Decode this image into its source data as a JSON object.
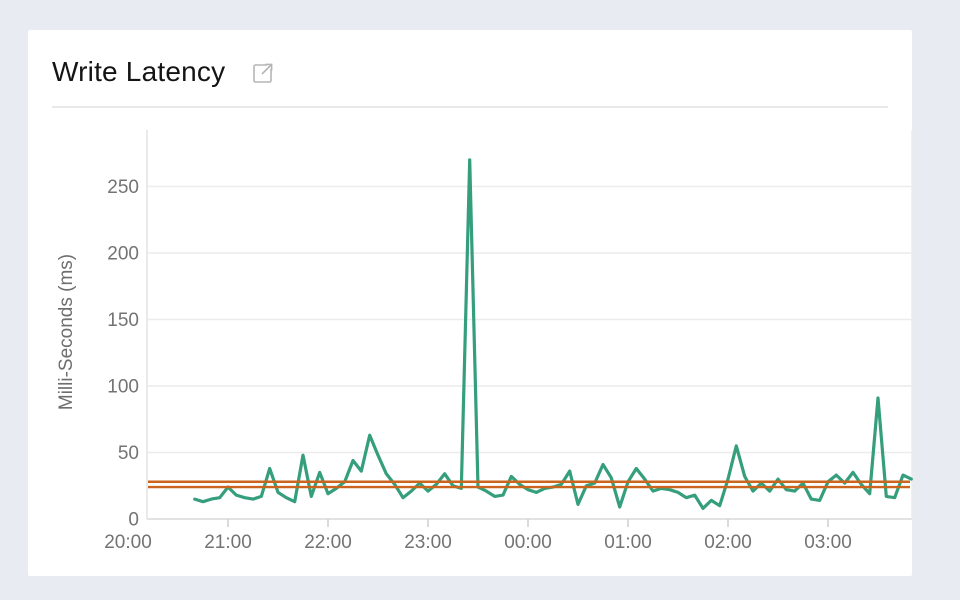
{
  "header": {
    "title": "Write Latency",
    "icon": "external-link"
  },
  "colors": {
    "page_background": "#e8ebf1",
    "card_background": "#ffffff",
    "series_green": "#349e7d",
    "reference_orange": "#cb641c",
    "gridline": "#ececec",
    "zero_line": "#d9d9d9",
    "axis_line": "#e4e4e4",
    "tick_text": "#737373",
    "axis_title_text": "#6e6e6e",
    "icon_gray": "#b5b5b5"
  },
  "chart_data": {
    "type": "line",
    "title": "Write Latency",
    "xlabel": "",
    "ylabel": "Milli-Seconds (ms)",
    "ylim": [
      0,
      285
    ],
    "grid": true,
    "legend_position": "none",
    "y_ticks": [
      0,
      50,
      100,
      150,
      200,
      250
    ],
    "x_tick_labels": [
      "20:00",
      "21:00",
      "22:00",
      "23:00",
      "00:00",
      "01:00",
      "02:00",
      "03:00"
    ],
    "x": [
      "20:40",
      "20:45",
      "20:50",
      "20:55",
      "21:00",
      "21:05",
      "21:10",
      "21:15",
      "21:20",
      "21:25",
      "21:30",
      "21:35",
      "21:40",
      "21:45",
      "21:50",
      "21:55",
      "22:00",
      "22:05",
      "22:10",
      "22:15",
      "22:20",
      "22:25",
      "22:30",
      "22:35",
      "22:40",
      "22:45",
      "22:50",
      "22:55",
      "23:00",
      "23:05",
      "23:10",
      "23:15",
      "23:20",
      "23:25",
      "23:30",
      "23:35",
      "23:40",
      "23:45",
      "23:50",
      "23:55",
      "00:00",
      "00:05",
      "00:10",
      "00:15",
      "00:20",
      "00:25",
      "00:30",
      "00:35",
      "00:40",
      "00:45",
      "00:50",
      "00:55",
      "01:00",
      "01:05",
      "01:10",
      "01:15",
      "01:20",
      "01:25",
      "01:30",
      "01:35",
      "01:40",
      "01:45",
      "01:50",
      "01:55",
      "02:00",
      "02:05",
      "02:10",
      "02:15",
      "02:20",
      "02:25",
      "02:30",
      "02:35",
      "02:40",
      "02:45",
      "02:50",
      "02:55",
      "03:00",
      "03:05",
      "03:10",
      "03:15",
      "03:20",
      "03:25",
      "03:30",
      "03:35",
      "03:40",
      "03:45",
      "03:50"
    ],
    "series": [
      {
        "name": "write-latency",
        "color": "#349e7d",
        "values": [
          15,
          13,
          15,
          16,
          24,
          18,
          16,
          15,
          17,
          38,
          20,
          16,
          13,
          48,
          17,
          35,
          19,
          23,
          28,
          44,
          36,
          63,
          48,
          34,
          26,
          16,
          21,
          27,
          21,
          26,
          34,
          25,
          23,
          270,
          24,
          21,
          17,
          18,
          32,
          26,
          22,
          20,
          23,
          24,
          26,
          36,
          11,
          25,
          27,
          41,
          31,
          9,
          28,
          38,
          30,
          21,
          23,
          22,
          20,
          16,
          18,
          8,
          14,
          10,
          30,
          55,
          32,
          21,
          27,
          21,
          30,
          22,
          21,
          27,
          15,
          14,
          28,
          33,
          27,
          35,
          26,
          19,
          91,
          17,
          16,
          33,
          30
        ]
      },
      {
        "name": "reference-upper",
        "type": "hline",
        "color": "#cb641c",
        "value": 28
      },
      {
        "name": "reference-lower",
        "type": "hline",
        "color": "#cb641c",
        "value": 24
      }
    ]
  }
}
